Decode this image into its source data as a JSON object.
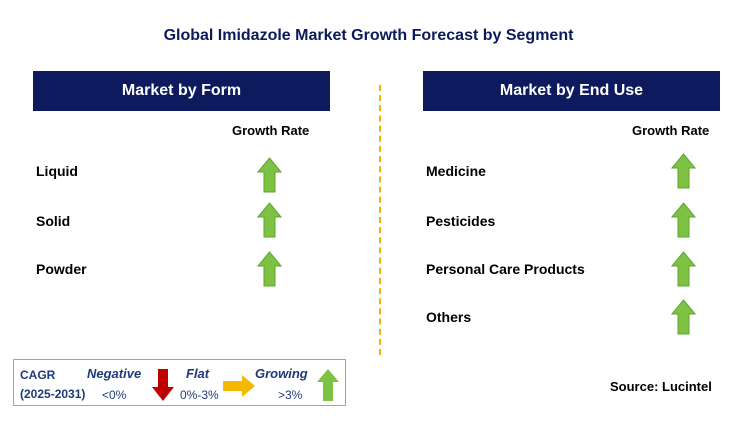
{
  "title": "Global Imidazole Market Growth Forecast by Segment",
  "left_panel": {
    "header": "Market by Form",
    "growth_rate_label": "Growth Rate",
    "items": [
      {
        "label": "Liquid",
        "trend": "growing"
      },
      {
        "label": "Solid",
        "trend": "growing"
      },
      {
        "label": "Powder",
        "trend": "growing"
      }
    ]
  },
  "right_panel": {
    "header": "Market by End Use",
    "growth_rate_label": "Growth Rate",
    "items": [
      {
        "label": "Medicine",
        "trend": "growing"
      },
      {
        "label": "Pesticides",
        "trend": "growing"
      },
      {
        "label": "Personal Care Products",
        "trend": "growing"
      },
      {
        "label": "Others",
        "trend": "growing"
      }
    ]
  },
  "legend": {
    "cagr_label": "CAGR",
    "period": "(2025-2031)",
    "negative_label": "Negative",
    "negative_range": "<0%",
    "flat_label": "Flat",
    "flat_range": "0%-3%",
    "growing_label": "Growing",
    "growing_range": ">3%"
  },
  "source": "Source: Lucintel",
  "colors": {
    "header_bg": "#0d1b5e",
    "growing": "#7dc242",
    "negative": "#c00000",
    "flat": "#f5b800",
    "divider": "#f2b400"
  }
}
